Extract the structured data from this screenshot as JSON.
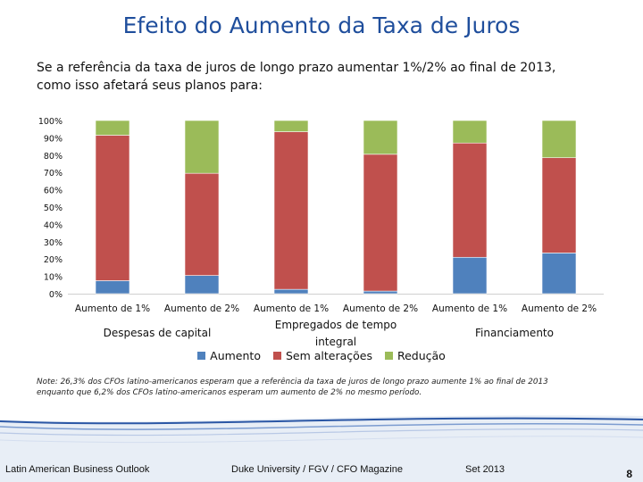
{
  "slide": {
    "title": "Efeito do Aumento da Taxa de Juros",
    "subtitle_line1": "Se a referência da taxa de juros de longo prazo aumentar 1%/2% ao final de 2013,",
    "subtitle_line2": "como isso afetará seus planos para:",
    "note_line1": "Note: 26,3% dos CFOs latino-americanos esperam que a referência da taxa de juros de longo prazo aumente 1% ao final de 2013",
    "note_line2": "enquanto que 6,2% dos CFOs latino-americanos esperam um aumento de 2% no mesmo período.",
    "footer_left": "Latin American Business Outlook",
    "footer_center": "Duke University / FGV / CFO Magazine",
    "footer_right": "Set 2013",
    "page_number": "8"
  },
  "colors": {
    "title": "#1f4e9c",
    "aumento": "#4f81bd",
    "sem_alteracoes": "#c0504d",
    "reducao": "#9bbb59"
  },
  "chart_data": {
    "type": "bar",
    "stacked": true,
    "categories": [
      "Aumento de 1%",
      "Aumento de 2%",
      "Aumento de 1%",
      "Aumento de 2%",
      "Aumento de 1%",
      "Aumento de 2%"
    ],
    "groups": [
      {
        "label_lines": [
          "Despesas de capital"
        ],
        "categories": [
          0,
          1
        ]
      },
      {
        "label_lines": [
          "Empregados de tempo",
          "integral"
        ],
        "categories": [
          2,
          3
        ]
      },
      {
        "label_lines": [
          "Financiamento"
        ],
        "categories": [
          4,
          5
        ]
      }
    ],
    "series": [
      {
        "name": "Aumento",
        "values": [
          7.5,
          10.5,
          2.5,
          1.5,
          21,
          23.5
        ]
      },
      {
        "name": "Sem alterações",
        "values": [
          84,
          59,
          91,
          79,
          66,
          55
        ]
      },
      {
        "name": "Redução",
        "values": [
          8.5,
          30.5,
          6.5,
          19.5,
          13,
          21.5
        ]
      }
    ],
    "ylim": [
      0,
      100
    ],
    "yticks": [
      "0%",
      "10%",
      "20%",
      "30%",
      "40%",
      "50%",
      "60%",
      "70%",
      "80%",
      "90%",
      "100%"
    ],
    "grid": false,
    "legend_position": "bottom"
  }
}
